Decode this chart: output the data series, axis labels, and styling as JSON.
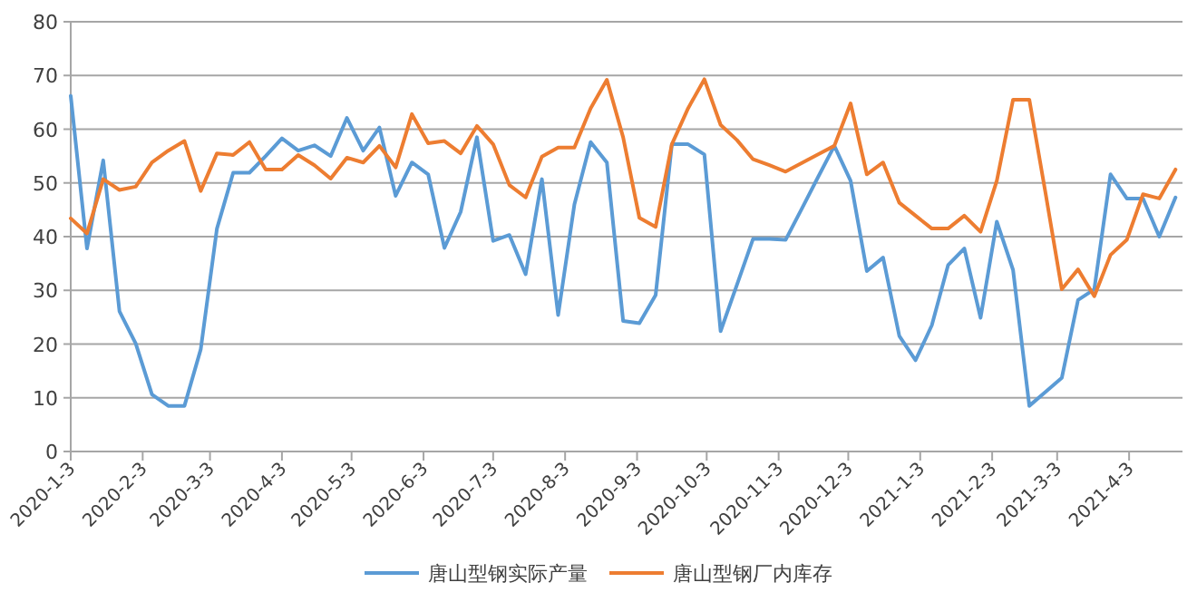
{
  "chart_data": {
    "type": "line",
    "x": [
      "2020-01-03",
      "2020-01-10",
      "2020-01-17",
      "2020-01-24",
      "2020-01-31",
      "2020-02-07",
      "2020-02-14",
      "2020-02-21",
      "2020-02-28",
      "2020-03-06",
      "2020-03-13",
      "2020-03-20",
      "2020-03-27",
      "2020-04-03",
      "2020-04-10",
      "2020-04-17",
      "2020-04-24",
      "2020-05-01",
      "2020-05-08",
      "2020-05-15",
      "2020-05-22",
      "2020-05-29",
      "2020-06-05",
      "2020-06-12",
      "2020-06-19",
      "2020-06-26",
      "2020-07-03",
      "2020-07-10",
      "2020-07-17",
      "2020-07-24",
      "2020-07-31",
      "2020-08-07",
      "2020-08-14",
      "2020-08-21",
      "2020-08-28",
      "2020-09-04",
      "2020-09-11",
      "2020-09-18",
      "2020-09-25",
      "2020-10-02",
      "2020-10-09",
      "2020-10-16",
      "2020-10-23",
      "2020-10-30",
      "2020-11-06",
      "2020-11-13",
      "2020-11-20",
      "2020-11-27",
      "2020-12-04",
      "2020-12-11",
      "2020-12-18",
      "2020-12-25",
      "2021-01-01",
      "2021-01-08",
      "2021-01-15",
      "2021-01-22",
      "2021-01-29",
      "2021-02-05",
      "2021-02-12",
      "2021-02-19",
      "2021-02-26",
      "2021-03-05",
      "2021-03-12",
      "2021-03-19",
      "2021-03-26",
      "2021-04-02",
      "2021-04-09",
      "2021-04-16",
      "2021-04-23"
    ],
    "series": [
      {
        "name": "唐山型钢实际产量",
        "color": "#5b9bd5",
        "values": [
          66.2,
          37.8,
          54.2,
          26.1,
          20.1,
          10.6,
          8.5,
          8.5,
          19,
          41.5,
          51.9,
          51.9,
          55,
          58.3,
          56,
          57,
          55,
          62.1,
          56,
          60.3,
          47.6,
          53.8,
          51.6,
          37.9,
          44.6,
          58.5,
          39.2,
          40.3,
          33,
          50.7,
          25.4,
          46,
          57.6,
          53.8,
          24.3,
          23.9,
          29.1,
          57.2,
          57.2,
          55.3,
          22.4,
          31,
          39.6,
          39.6,
          39.4,
          45.2,
          51.1,
          56.9,
          50.4,
          33.6,
          36.1,
          21.5,
          17,
          23.5,
          34.7,
          37.8,
          24.9,
          42.8,
          33.8,
          8.5,
          11.1,
          13.7,
          28.2,
          30.2,
          51.6,
          47.1,
          47.1,
          40,
          47.3
        ]
      },
      {
        "name": "唐山型钢厂内库存",
        "color": "#ed7d31",
        "values": [
          43.4,
          40.6,
          50.7,
          48.7,
          49.3,
          53.8,
          56,
          57.8,
          48.5,
          55.5,
          55.2,
          57.6,
          52.5,
          52.5,
          55.2,
          53.3,
          50.8,
          54.7,
          53.8,
          56.9,
          52.9,
          62.8,
          57.4,
          57.8,
          55.5,
          60.6,
          57.2,
          49.6,
          47.3,
          54.9,
          56.6,
          56.6,
          63.9,
          69.2,
          58.5,
          43.5,
          41.8,
          57.2,
          63.9,
          69.3,
          60.8,
          58,
          54.4,
          53.3,
          52.1,
          53.7,
          55.3,
          56.9,
          64.8,
          51.6,
          53.8,
          46.3,
          43.9,
          41.5,
          41.5,
          43.9,
          40.9,
          50.4,
          65.5,
          65.5,
          48.1,
          30.2,
          33.9,
          28.9,
          36.6,
          39.4,
          47.9,
          47.1,
          52.5
        ]
      }
    ],
    "xlim": [
      "2020-01-03",
      "2021-04-26"
    ],
    "xticks": [
      {
        "value": "2020-01-03",
        "label": "2020-1-3"
      },
      {
        "value": "2020-02-03",
        "label": "2020-2-3"
      },
      {
        "value": "2020-03-03",
        "label": "2020-3-3"
      },
      {
        "value": "2020-04-03",
        "label": "2020-4-3"
      },
      {
        "value": "2020-05-03",
        "label": "2020-5-3"
      },
      {
        "value": "2020-06-03",
        "label": "2020-6-3"
      },
      {
        "value": "2020-07-03",
        "label": "2020-7-3"
      },
      {
        "value": "2020-08-03",
        "label": "2020-8-3"
      },
      {
        "value": "2020-09-03",
        "label": "2020-9-3"
      },
      {
        "value": "2020-10-03",
        "label": "2020-10-3"
      },
      {
        "value": "2020-11-03",
        "label": "2020-11-3"
      },
      {
        "value": "2020-12-03",
        "label": "2020-12-3"
      },
      {
        "value": "2021-01-03",
        "label": "2021-1-3"
      },
      {
        "value": "2021-02-03",
        "label": "2021-2-3"
      },
      {
        "value": "2021-03-03",
        "label": "2021-3-3"
      },
      {
        "value": "2021-04-03",
        "label": "2021-4-3"
      }
    ],
    "ylim": [
      0,
      80
    ],
    "yticks": [
      0,
      10,
      20,
      30,
      40,
      50,
      60,
      70,
      80
    ],
    "grid": "y",
    "legend": "bottom"
  }
}
